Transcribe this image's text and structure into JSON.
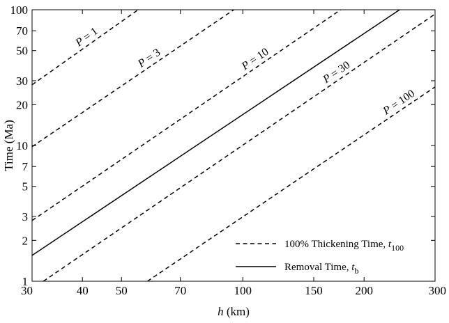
{
  "chart_data": {
    "type": "line",
    "xscale": "log",
    "yscale": "log",
    "xlim": [
      30,
      300
    ],
    "ylim": [
      1,
      100
    ],
    "xlabel": {
      "italic": "h",
      "rest": " (km)"
    },
    "ylabel": "Time (Ma)",
    "xticks": [
      30,
      40,
      50,
      70,
      100,
      150,
      200,
      300
    ],
    "xtick_labels": [
      "30",
      "40",
      "50",
      "70",
      "100",
      "150",
      "200",
      "300"
    ],
    "yticks": [
      1,
      2,
      3,
      5,
      7,
      10,
      20,
      30,
      50,
      70,
      100
    ],
    "ytick_labels": [
      "1",
      "2",
      "3",
      "5",
      "7",
      "10",
      "20",
      "30",
      "50",
      "70",
      "100"
    ],
    "grid": false,
    "legend_position": "bottom-right",
    "series": [
      {
        "id": "p1",
        "style": "dashed",
        "label_italic": "P",
        "label_rest": " = 1",
        "x": [
          30,
          55
        ],
        "y": [
          28,
          100
        ]
      },
      {
        "id": "p3",
        "style": "dashed",
        "label_italic": "P",
        "label_rest": " = 3",
        "x": [
          30,
          95
        ],
        "y": [
          9.8,
          100
        ]
      },
      {
        "id": "p10",
        "style": "dashed",
        "label_italic": "P",
        "label_rest": " = 10",
        "x": [
          30,
          175
        ],
        "y": [
          2.8,
          100
        ]
      },
      {
        "id": "removal",
        "style": "solid",
        "x": [
          30,
          245
        ],
        "y": [
          1.55,
          100
        ]
      },
      {
        "id": "p30",
        "style": "dashed",
        "label_italic": "P",
        "label_rest": " = 30",
        "x": [
          32,
          300
        ],
        "y": [
          1,
          93
        ]
      },
      {
        "id": "p100",
        "style": "dashed",
        "label_italic": "P",
        "label_rest": " = 100",
        "x": [
          58,
          300
        ],
        "y": [
          1,
          27
        ]
      }
    ],
    "legend": [
      {
        "style": "dashed",
        "text": "100% Thickening Time, ",
        "italic": "t",
        "subscript": "100"
      },
      {
        "style": "solid",
        "text": "Removal Time, ",
        "italic": "t",
        "subscript": "b"
      }
    ]
  }
}
